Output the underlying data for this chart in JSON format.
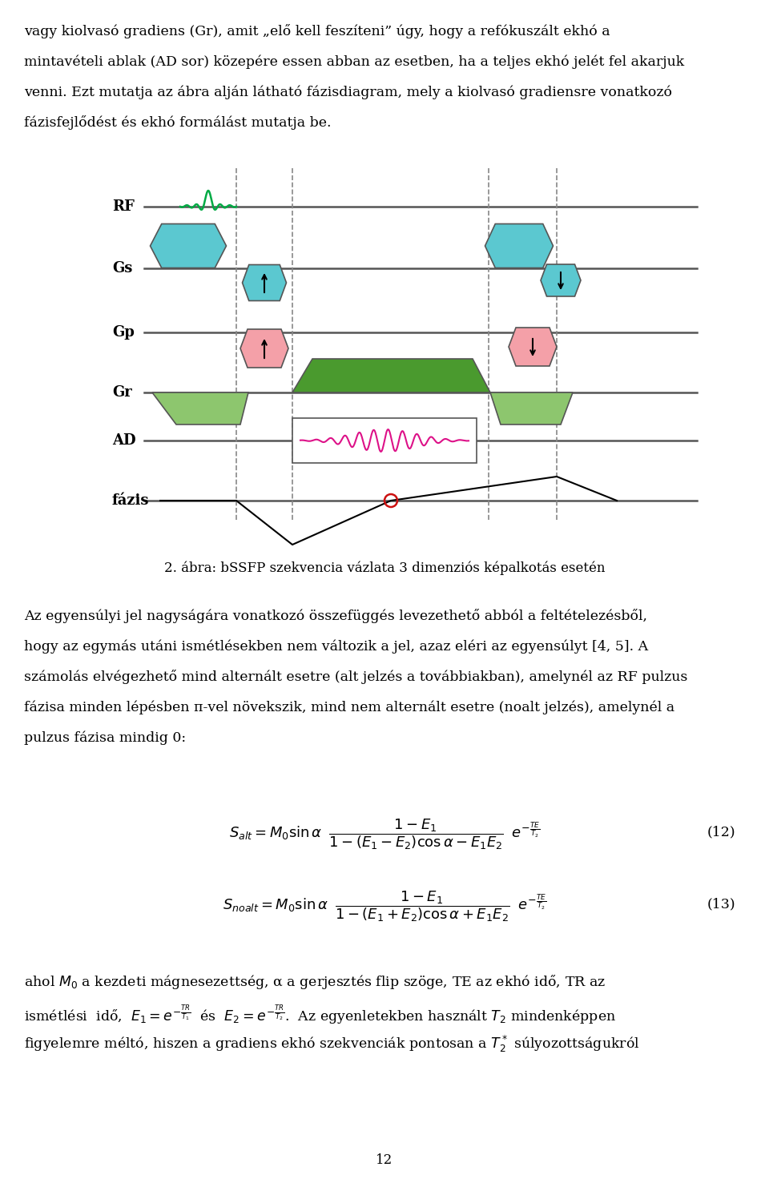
{
  "page_width": 9.6,
  "page_height": 14.72,
  "bg_color": "#ffffff",
  "text_color": "#000000",
  "top_text": [
    "vagy kiolvasó gradiens (Gr), amit „elő kell feszíteni” úgy, hogy a refókuszált ekhó a",
    "mintavételi ablak (AD sor) közepére essen abban az esetben, ha a teljes ekhó jelét fel akarjuk",
    "venni. Ezt mutatja az ábra alján látható fázisdiagram, mely a kiolvasó gradiensre vonatkozó",
    "fázisfejlődést és ekhó formálást mutatja be."
  ],
  "diagram_caption": "2. ábra: bSSFP szekvencia vázlata 3 dimenziós képalkotás esetén",
  "body_text": [
    "Az egyensúlyi jel nagyságára vonatkozó összefüggés levezethető abból a feltételezésből,",
    "hogy az egymás utáni ismétlésekben nem változik a jel, azaz eléri az egyensúlyt [4, 5]. A",
    "számolás elvégezhető mind alternált esetre (alt jelzés a továbbiakban), amelynél az RF pulzus",
    "fázisa minden lépésben π-vel növekszik, mind nem alternált esetre (noalt jelzés), amelynél a",
    "pulzus fázisa mindig 0:"
  ],
  "bottom_text": [
    "ahol M₀ a kezdeti mágnesezettség, α a gerjesztés flip szöge, TE az ekhó idő, TR az",
    "ismétlési idő, E₁ = e^⁻^T^R^/^T₁ és E₂ = e^⁻^T^R^/^T₂. Az egyenletekben használt T₂ mindenkppen",
    "figyelemre méltó, hiszen a gradiens ekhó szekvenciák pontosan a T₂* súlyozottságukról"
  ],
  "page_number": "12",
  "cyan_color": "#5BC8D0",
  "pink_color": "#F4A0A8",
  "green_light": "#8DC66E",
  "green_dark": "#4A9A2E",
  "line_color": "#555555",
  "dashed_color": "#888888"
}
